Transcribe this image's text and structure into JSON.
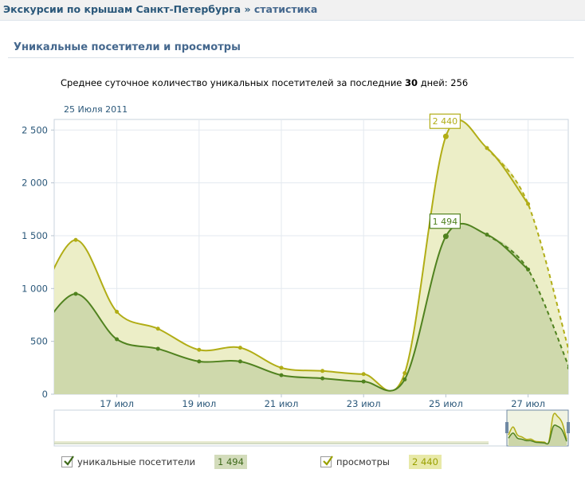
{
  "breadcrumb": {
    "group": "Экскурсии по крышам Санкт-Петербурга",
    "sep": "»",
    "current": "статистика"
  },
  "section_title": "Уникальные посетители и просмотры",
  "summary": {
    "prefix": "Среднее суточное количество уникальных посетителей за последние",
    "days": "30",
    "suffix": "дней:",
    "value": "256"
  },
  "date_label": "25 Июля 2011",
  "chart_data": {
    "type": "area",
    "x": [
      "15 июл",
      "16 июл",
      "17 июл",
      "18 июл",
      "19 июл",
      "20 июл",
      "21 июл",
      "22 июл",
      "23 июл",
      "24 июл",
      "25 июл",
      "26 июл",
      "27 июл",
      "28 июл"
    ],
    "x_tick_labels": [
      "17 июл",
      "19 июл",
      "21 июл",
      "23 июл",
      "25 июл",
      "27 июл"
    ],
    "y_ticks": [
      "0",
      "500",
      "1 000",
      "1 500",
      "2 000",
      "2 500"
    ],
    "ylim": [
      0,
      2600
    ],
    "grid": true,
    "series": [
      {
        "name": "просмотры",
        "color": "#b1ad16",
        "fill": "#eceec7",
        "values": [
          780,
          1460,
          780,
          620,
          420,
          440,
          250,
          220,
          190,
          200,
          2440,
          2330,
          1800,
          400
        ]
      },
      {
        "name": "уникальные посетители",
        "color": "#50821f",
        "fill": "#ccd6a8",
        "values": [
          520,
          950,
          520,
          430,
          310,
          310,
          180,
          150,
          120,
          140,
          1494,
          1510,
          1180,
          250
        ]
      }
    ],
    "tooltips": [
      {
        "series": "просмотры",
        "x": "25 июл",
        "value": 2440,
        "label": "2 440"
      },
      {
        "series": "уникальные посетители",
        "x": "25 июл",
        "value": 1494,
        "label": "1 494"
      }
    ]
  },
  "legend": {
    "uniq_label": "уникальные посетители",
    "uniq_value": "1 494",
    "views_label": "просмотры",
    "views_value": "2 440"
  }
}
